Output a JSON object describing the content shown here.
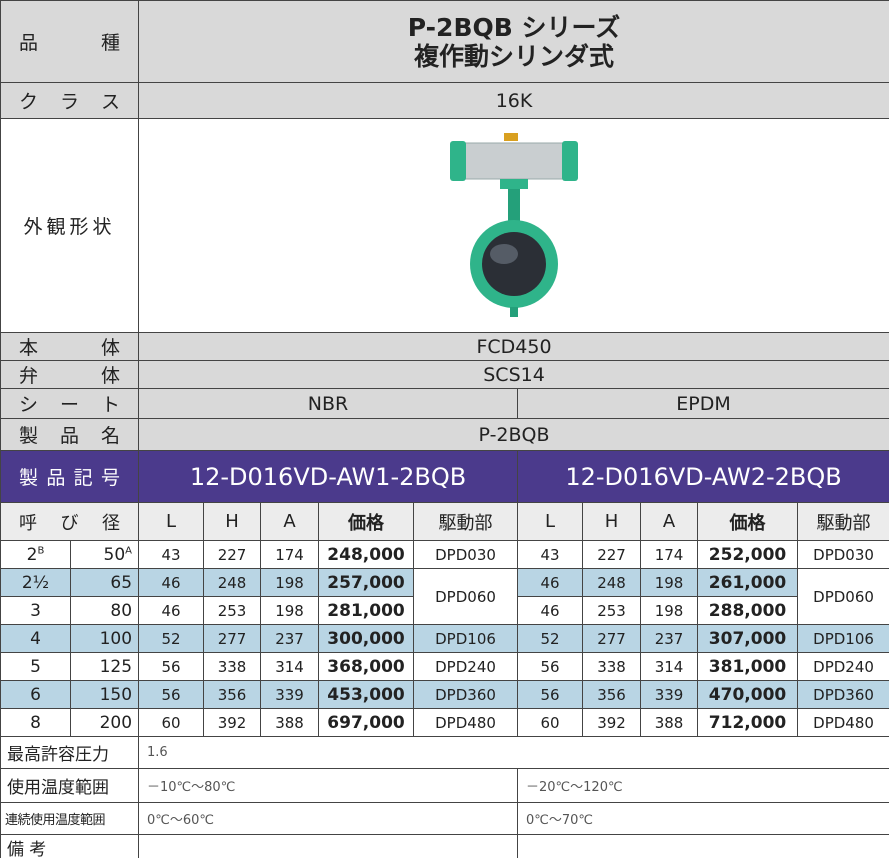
{
  "header": {
    "kind_label": "品 種",
    "title_lines": [
      "P-2BQB シリーズ",
      "複作動シリンダ式"
    ]
  },
  "class": {
    "label": "ク ラ ス",
    "value": "16K"
  },
  "appearance": {
    "label": "外観形状"
  },
  "body": {
    "label": "本 体",
    "value": "FCD450"
  },
  "disc": {
    "label": "弁 体",
    "value": "SCS14"
  },
  "seat": {
    "label": "シ ー ト",
    "values": [
      "NBR",
      "EPDM"
    ]
  },
  "product_name": {
    "label": "製 品 名",
    "value": "P-2BQB"
  },
  "product_code": {
    "label": "製 品 記 号",
    "values": [
      "12-D016VD-AW1-2BQB",
      "12-D016VD-AW2-2BQB"
    ]
  },
  "table": {
    "size_label": "呼 び 径",
    "columns": [
      "L",
      "H",
      "A",
      "価格",
      "駆動部"
    ],
    "rows": [
      {
        "inch": "2",
        "inch_sup": "B",
        "mm": "50",
        "mm_sup": "A",
        "left": [
          43,
          227,
          174,
          "248,000",
          "DPD030"
        ],
        "right": [
          43,
          227,
          174,
          "252,000",
          "DPD030"
        ]
      },
      {
        "inch": "2½",
        "mm": "65",
        "left": [
          46,
          248,
          198,
          "257,000",
          "DPD060"
        ],
        "right": [
          46,
          248,
          198,
          "261,000",
          "DPD060"
        ]
      },
      {
        "inch": "3",
        "mm": "80",
        "left": [
          46,
          253,
          198,
          "281,000"
        ],
        "right": [
          46,
          253,
          198,
          "288,000"
        ]
      },
      {
        "inch": "4",
        "mm": "100",
        "left": [
          52,
          277,
          237,
          "300,000",
          "DPD106"
        ],
        "right": [
          52,
          277,
          237,
          "307,000",
          "DPD106"
        ]
      },
      {
        "inch": "5",
        "mm": "125",
        "left": [
          56,
          338,
          314,
          "368,000",
          "DPD240"
        ],
        "right": [
          56,
          338,
          314,
          "381,000",
          "DPD240"
        ]
      },
      {
        "inch": "6",
        "mm": "150",
        "left": [
          56,
          356,
          339,
          "453,000",
          "DPD360"
        ],
        "right": [
          56,
          356,
          339,
          "470,000",
          "DPD360"
        ]
      },
      {
        "inch": "8",
        "mm": "200",
        "left": [
          60,
          392,
          388,
          "697,000",
          "DPD480"
        ],
        "right": [
          60,
          392,
          388,
          "712,000",
          "DPD480"
        ]
      }
    ]
  },
  "max_pressure": {
    "label": "最高許容圧力",
    "value": "1.6"
  },
  "temp_range": {
    "label": "使用温度範囲",
    "values": [
      "－10℃～80℃",
      "－20℃～120℃"
    ]
  },
  "continuous_temp": {
    "label": "連続使用温度範囲",
    "values": [
      "0℃～60℃",
      "0℃～70℃"
    ]
  },
  "remarks": {
    "label": "備 考"
  }
}
